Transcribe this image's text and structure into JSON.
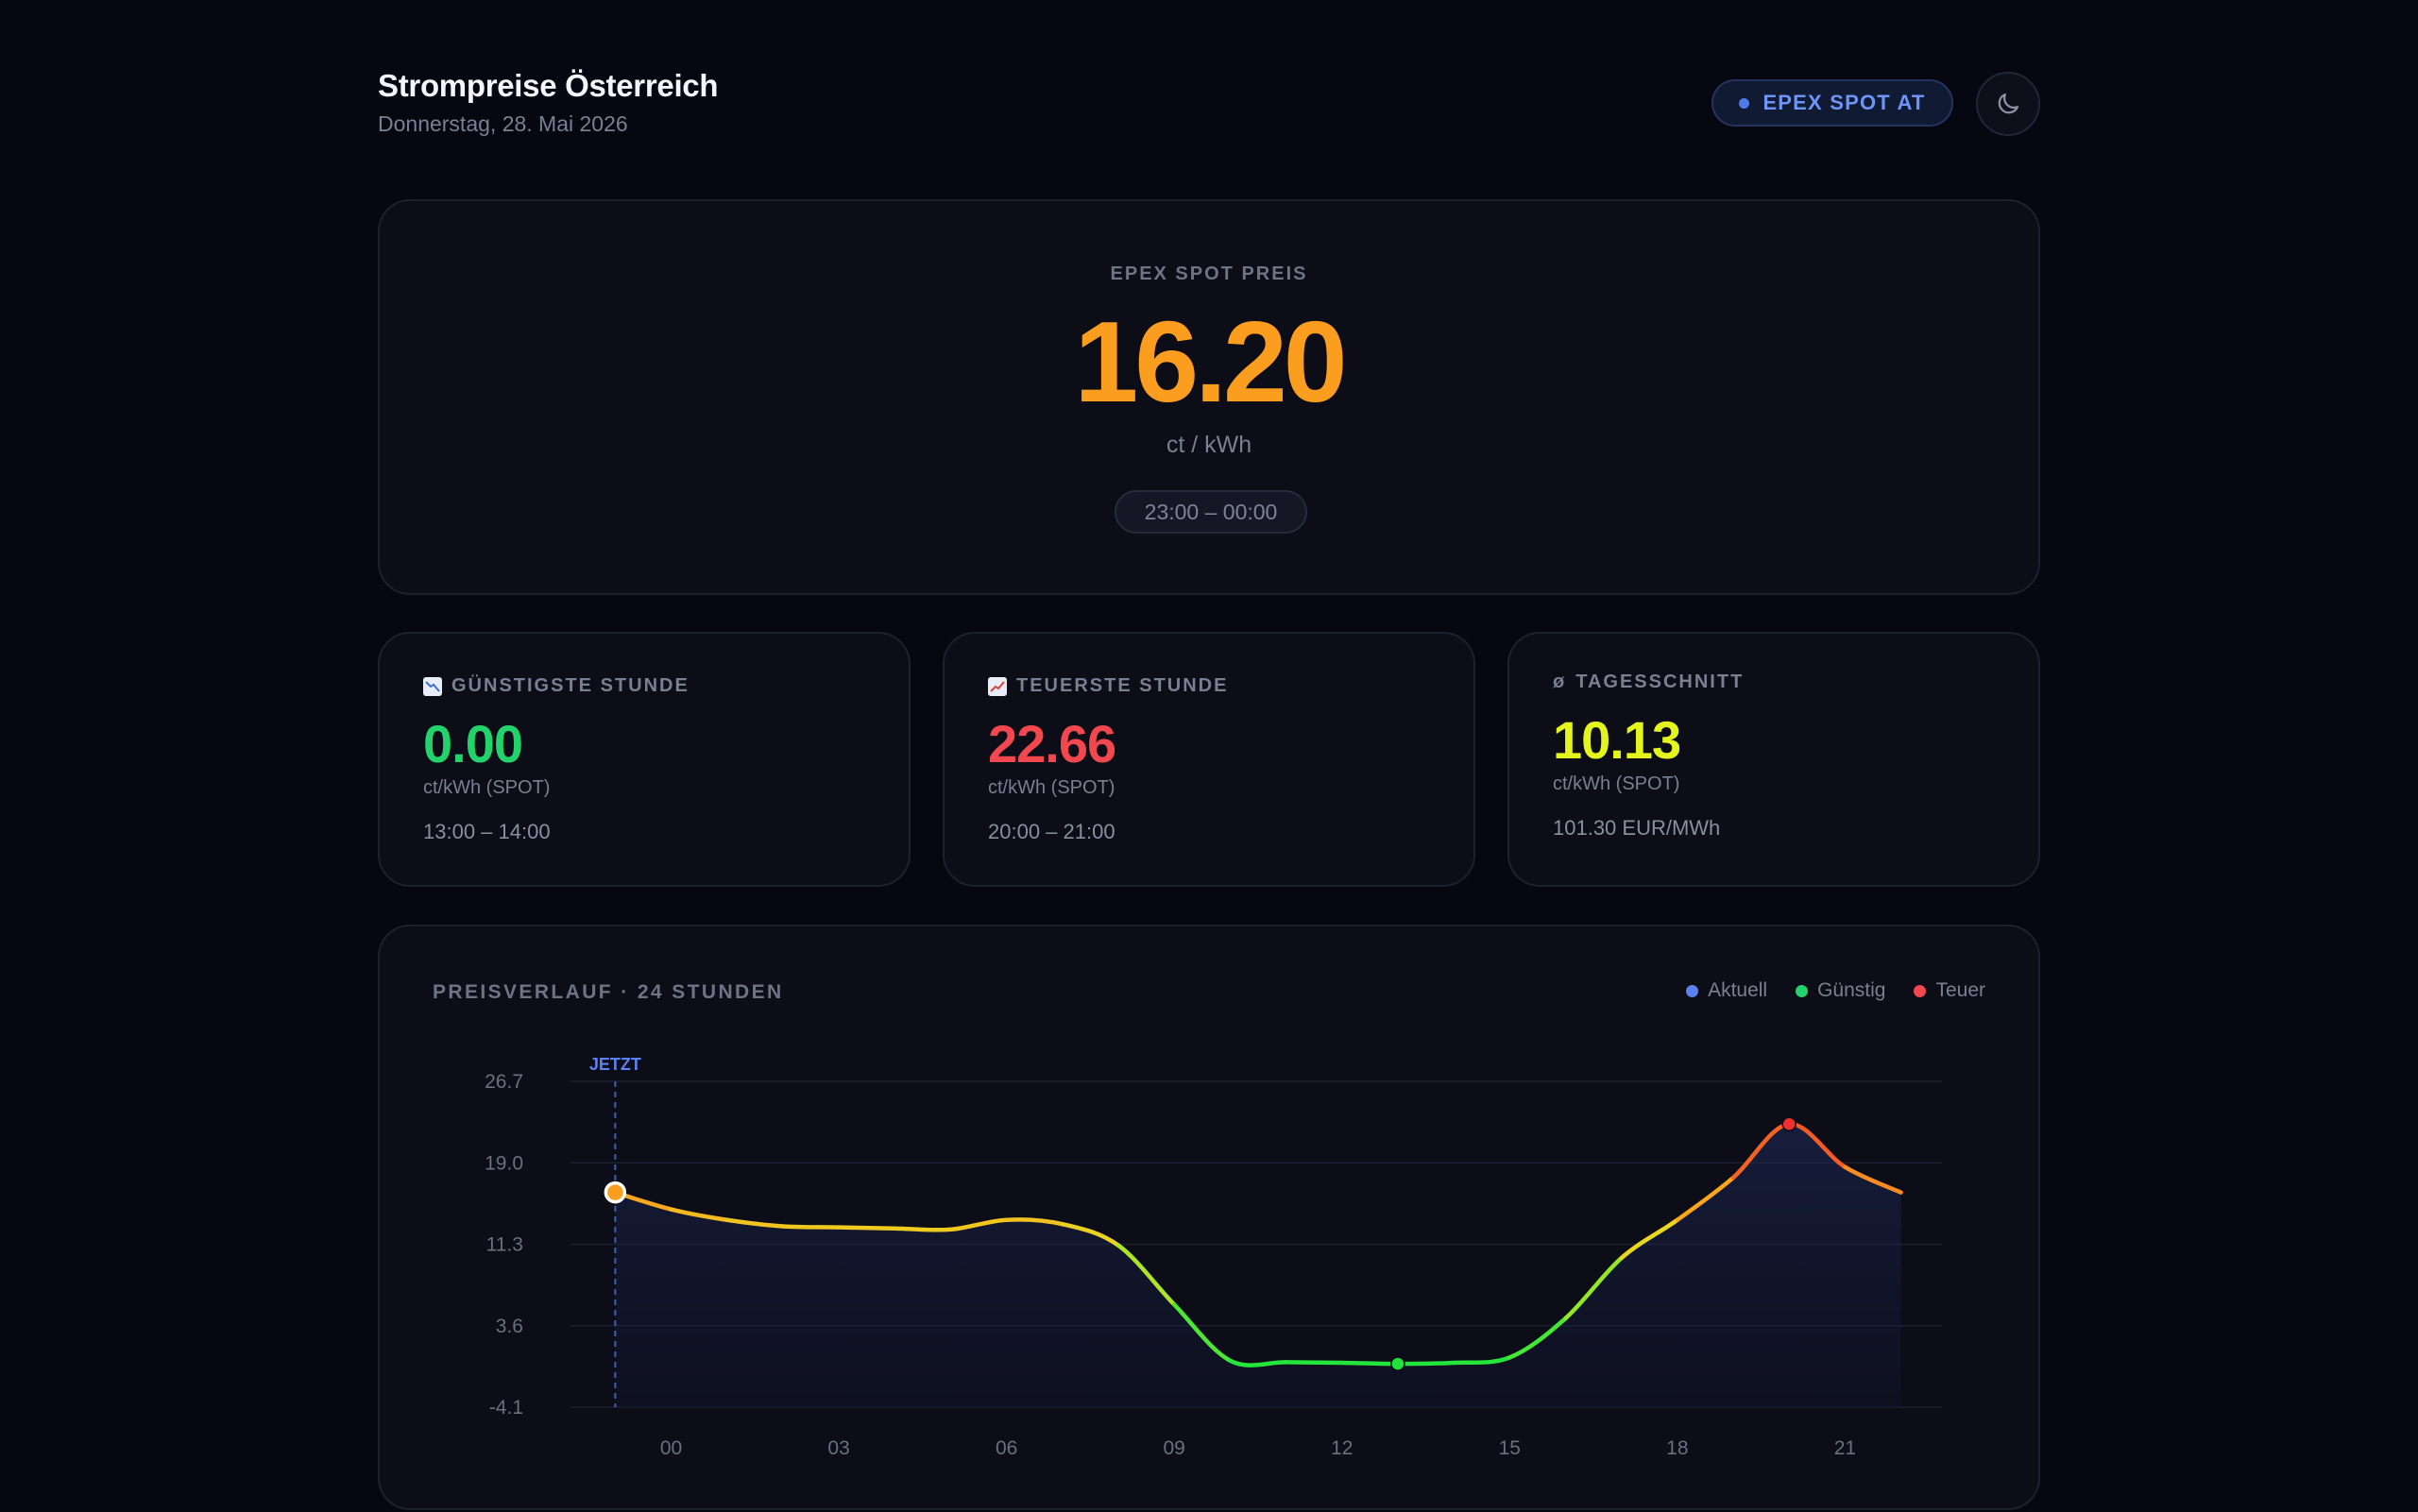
{
  "header": {
    "title": "Strompreise Österreich",
    "date": "Donnerstag, 28. Mai 2026",
    "source_badge": "EPEX SPOT AT",
    "theme_toggle_icon": "moon-icon"
  },
  "hero": {
    "label": "EPEX SPOT PREIS",
    "value": "16.20",
    "unit": "ct / kWh",
    "time_range": "23:00 – 00:00"
  },
  "stats": {
    "cheapest": {
      "icon": "chart-decreasing-icon",
      "label": "GÜNSTIGSTE STUNDE",
      "value": "0.00",
      "unit": "ct/kWh (SPOT)",
      "time": "13:00 – 14:00"
    },
    "expensive": {
      "icon": "chart-increasing-icon",
      "label": "TEUERSTE STUNDE",
      "value": "22.66",
      "unit": "ct/kWh (SPOT)",
      "time": "20:00 – 21:00"
    },
    "average": {
      "icon": "ø",
      "label": "TAGESSCHNITT",
      "value": "10.13",
      "unit": "ct/kWh (SPOT)",
      "extra": "101.30 EUR/MWh"
    }
  },
  "chart_card": {
    "title": "PREISVERLAUF · 24 STUNDEN",
    "legend": [
      {
        "label": "Aktuell",
        "color": "#5b82f0"
      },
      {
        "label": "Günstig",
        "color": "#22d36b"
      },
      {
        "label": "Teuer",
        "color": "#f0484e"
      }
    ]
  },
  "colors": {
    "accent_orange": "#fb9d1f",
    "cheap_green": "#22d36b",
    "expensive_red": "#f0484e",
    "average_yellow": "#e4f51d",
    "accent_blue": "#5b82f0"
  },
  "chart_data": {
    "type": "line",
    "title": "PREISVERLAUF · 24 STUNDEN",
    "xlabel": "",
    "ylabel": "",
    "x_ticks": [
      "00",
      "03",
      "06",
      "09",
      "12",
      "15",
      "18",
      "21"
    ],
    "y_ticks": [
      "26.7",
      "19.0",
      "11.3",
      "3.6",
      "-4.1"
    ],
    "ylim": [
      -4.1,
      26.7
    ],
    "now_label": "JETZT",
    "now_x": -1,
    "series": [
      {
        "x": [
          -1,
          0,
          1,
          2,
          3,
          4,
          5,
          6,
          7,
          8,
          9,
          10,
          11,
          12,
          13,
          14,
          15,
          16,
          17,
          18,
          19,
          20,
          21,
          22
        ],
        "values": [
          16.2,
          14.6,
          13.6,
          13.0,
          12.9,
          12.8,
          12.7,
          13.6,
          13.2,
          11.2,
          5.6,
          0.3,
          0.15,
          0.1,
          0.0,
          0.1,
          0.6,
          4.3,
          10.0,
          13.6,
          17.6,
          22.66,
          18.6,
          16.2
        ]
      }
    ],
    "markers": {
      "current": {
        "x": -1,
        "value": 16.2
      },
      "min": {
        "x": 13,
        "value": 0.0
      },
      "max": {
        "x": 20,
        "value": 22.66
      }
    },
    "grid": true,
    "legend_position": "top-right"
  }
}
